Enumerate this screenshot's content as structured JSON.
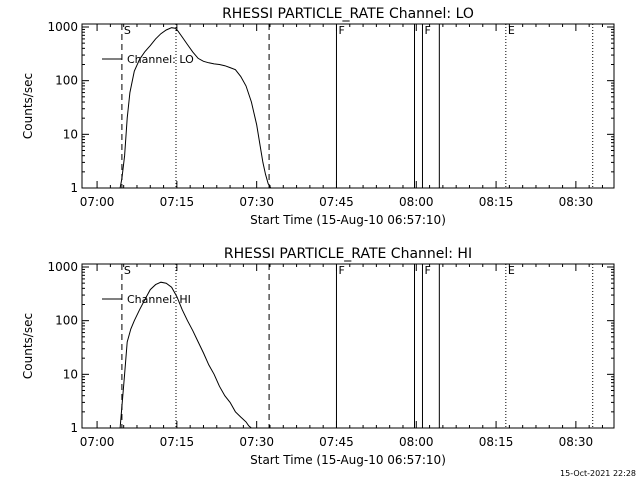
{
  "footer": {
    "timestamp": "15-Oct-2021 22:28"
  },
  "chart_data": [
    {
      "type": "line",
      "title": "RHESSI PARTICLE_RATE Channel: LO",
      "xlabel": "Start Time (15-Aug-10 06:57:10)",
      "ylabel": "Counts/sec",
      "yscale": "log",
      "ylim": [
        1,
        1000
      ],
      "xlim": [
        "06:57:10",
        "08:37:10"
      ],
      "xticks": [
        "07:00",
        "07:15",
        "07:30",
        "07:45",
        "08:00",
        "08:15",
        "08:30"
      ],
      "yticks": [
        "1",
        "10",
        "100",
        "1000"
      ],
      "legend": {
        "label": "Channel: LO",
        "position": "top-left"
      },
      "markers": [
        {
          "time": "07:04:40",
          "style": "dashed",
          "label": "S"
        },
        {
          "time": "07:14:50",
          "style": "dotted",
          "label": ""
        },
        {
          "time": "07:32:20",
          "style": "dashed",
          "label": ""
        },
        {
          "time": "07:45:00",
          "style": "solid",
          "label": "F"
        },
        {
          "time": "07:59:40",
          "style": "solid",
          "label": ""
        },
        {
          "time": "08:01:10",
          "style": "solid",
          "label": "F"
        },
        {
          "time": "08:04:20",
          "style": "solid",
          "label": ""
        },
        {
          "time": "08:16:50",
          "style": "dotted",
          "label": "E"
        },
        {
          "time": "08:33:10",
          "style": "dotted",
          "label": ""
        }
      ],
      "series": [
        {
          "x": [
            "07:04:20",
            "07:04:40",
            "07:05:10",
            "07:05:40",
            "07:06:10",
            "07:07:00",
            "07:08:00",
            "07:09:00",
            "07:10:00",
            "07:11:00",
            "07:12:00",
            "07:13:00",
            "07:14:00",
            "07:14:40",
            "07:15:10",
            "07:16:00",
            "07:17:00",
            "07:18:00",
            "07:19:00",
            "07:20:00",
            "07:21:00",
            "07:22:00",
            "07:23:00",
            "07:24:00",
            "07:25:00",
            "07:26:00",
            "07:27:00",
            "07:28:00",
            "07:29:00",
            "07:30:00",
            "07:30:40",
            "07:31:10",
            "07:31:40",
            "07:32:10",
            "07:32:40"
          ],
          "y": [
            1,
            1.5,
            4,
            20,
            60,
            150,
            250,
            350,
            450,
            600,
            750,
            880,
            970,
            950,
            850,
            650,
            470,
            340,
            260,
            230,
            215,
            205,
            200,
            190,
            175,
            160,
            120,
            80,
            40,
            15,
            6,
            3,
            1.8,
            1.2,
            1
          ]
        }
      ]
    },
    {
      "type": "line",
      "title": "RHESSI PARTICLE_RATE Channel: HI",
      "xlabel": "Start Time (15-Aug-10 06:57:10)",
      "ylabel": "Counts/sec",
      "yscale": "log",
      "ylim": [
        1,
        1000
      ],
      "xlim": [
        "06:57:10",
        "08:37:10"
      ],
      "xticks": [
        "07:00",
        "07:15",
        "07:30",
        "07:45",
        "08:00",
        "08:15",
        "08:30"
      ],
      "yticks": [
        "1",
        "10",
        "100",
        "1000"
      ],
      "legend": {
        "label": "Channel: HI",
        "position": "top-left"
      },
      "markers": [
        {
          "time": "07:04:40",
          "style": "dashed",
          "label": "S"
        },
        {
          "time": "07:14:50",
          "style": "dotted",
          "label": ""
        },
        {
          "time": "07:32:20",
          "style": "dashed",
          "label": ""
        },
        {
          "time": "07:45:00",
          "style": "solid",
          "label": "F"
        },
        {
          "time": "07:59:40",
          "style": "solid",
          "label": ""
        },
        {
          "time": "08:01:10",
          "style": "solid",
          "label": "F"
        },
        {
          "time": "08:04:20",
          "style": "solid",
          "label": ""
        },
        {
          "time": "08:16:50",
          "style": "dotted",
          "label": "E"
        },
        {
          "time": "08:33:10",
          "style": "dotted",
          "label": ""
        }
      ],
      "series": [
        {
          "x": [
            "07:04:20",
            "07:04:40",
            "07:05:10",
            "07:05:40",
            "07:06:20",
            "07:07:00",
            "07:08:00",
            "07:09:00",
            "07:10:00",
            "07:11:00",
            "07:12:00",
            "07:13:00",
            "07:14:00",
            "07:15:00",
            "07:16:00",
            "07:17:00",
            "07:18:00",
            "07:19:00",
            "07:20:00",
            "07:21:00",
            "07:22:00",
            "07:23:00",
            "07:24:00",
            "07:25:00",
            "07:26:00",
            "07:27:00",
            "07:28:00",
            "07:28:30",
            "07:29:00"
          ],
          "y": [
            1,
            2.5,
            10,
            40,
            70,
            100,
            160,
            250,
            380,
            470,
            520,
            500,
            420,
            280,
            160,
            100,
            65,
            40,
            25,
            15,
            10,
            6,
            4,
            3,
            2,
            1.6,
            1.3,
            1.1,
            1
          ]
        }
      ]
    }
  ]
}
